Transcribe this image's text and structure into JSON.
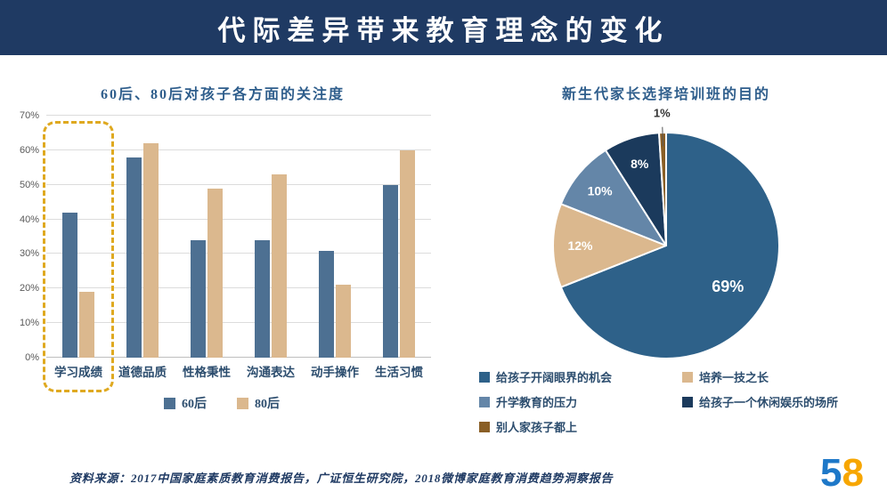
{
  "header": {
    "title": "代际差异带来教育理念的变化"
  },
  "chart_data": [
    {
      "type": "bar",
      "title": "60后、80后对孩子各方面的关注度",
      "categories": [
        "学习成绩",
        "道德品质",
        "性格秉性",
        "沟通表达",
        "动手操作",
        "生活习惯"
      ],
      "series": [
        {
          "name": "60后",
          "color": "#4D7092",
          "values": [
            42,
            58,
            34,
            34,
            31,
            50
          ]
        },
        {
          "name": "80后",
          "color": "#DBB88E",
          "values": [
            19,
            62,
            49,
            53,
            21,
            60
          ]
        }
      ],
      "ylim": [
        0,
        70
      ],
      "ytick_step": 10,
      "ytick_labels": [
        "0%",
        "10%",
        "20%",
        "30%",
        "40%",
        "50%",
        "60%",
        "70%"
      ],
      "grid": true,
      "legend_position": "bottom",
      "highlight": {
        "target_category": "学习成绩",
        "shape": "dashed-rounded-box",
        "color": "#DFA920"
      }
    },
    {
      "type": "pie",
      "title": "新生代家长选择培训班的目的",
      "slices": [
        {
          "label": "给孩子开阔眼界的机会",
          "value": 69,
          "display": "69%",
          "color": "#2E6189"
        },
        {
          "label": "培养一技之长",
          "value": 12,
          "display": "12%",
          "color": "#DBB88E"
        },
        {
          "label": "升学教育的压力",
          "value": 10,
          "display": "10%",
          "color": "#6486A8"
        },
        {
          "label": "给孩子一个休闲娱乐的场所",
          "value": 8,
          "display": "8%",
          "color": "#1B3A5C"
        },
        {
          "label": "别人家孩子都上",
          "value": 1,
          "display": "1%",
          "color": "#8A5F26"
        }
      ],
      "start_angle_deg": 0,
      "direction": "clockwise",
      "legend_position": "bottom",
      "legend_columns": 2
    }
  ],
  "footer": {
    "source": "资料来源：2017中国家庭素质教育消费报告，广证恒生研究院，2018微博家庭教育消费趋势洞察报告",
    "logo": {
      "text": "58",
      "char1": "5",
      "char2": "8",
      "char1_color": "#1E78C8",
      "char2_color": "#F7A600"
    }
  }
}
